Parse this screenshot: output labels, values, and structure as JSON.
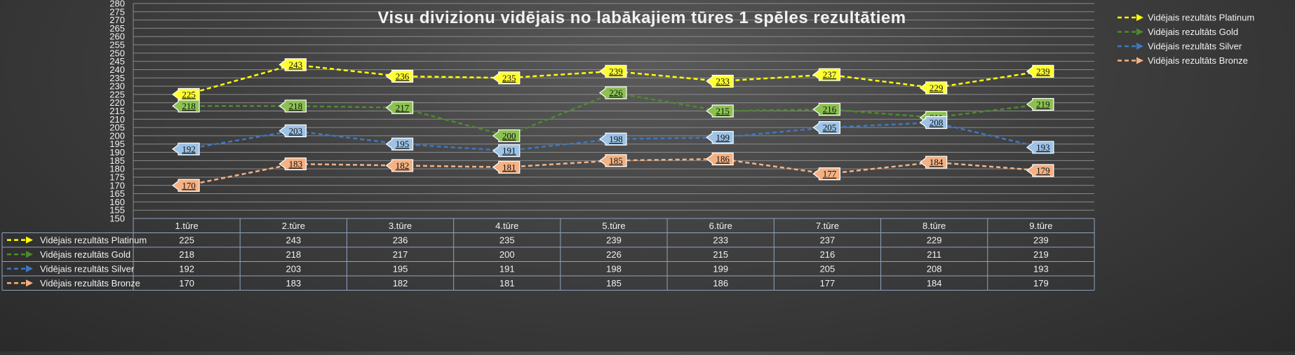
{
  "chart_data": {
    "type": "line",
    "title": "Visu divizionu vidējais no labākajiem tūres 1 spēles rezultātiem",
    "categories": [
      "1.tūre",
      "2.tūre",
      "3.tūre",
      "4.tūre",
      "5.tūre",
      "6.tūre",
      "7.tūre",
      "8.tūre",
      "9.tūre"
    ],
    "ylim": [
      150,
      280
    ],
    "ystep": 5,
    "grid": true,
    "legend_position": "top-right",
    "data_table": true,
    "series": [
      {
        "name": "Vidējais rezultāts Platinum",
        "color": "#ffff00",
        "label_bg": "#ffff33",
        "values": [
          225,
          243,
          236,
          235,
          239,
          233,
          237,
          229,
          239
        ]
      },
      {
        "name": "Vidējais rezultāts Gold",
        "color": "#4e8a2b",
        "label_bg": "#8cc152",
        "values": [
          218,
          218,
          217,
          200,
          226,
          215,
          216,
          211,
          219
        ]
      },
      {
        "name": "Vidējais rezultāts Silver",
        "color": "#3d78c2",
        "label_bg": "#9dc3e6",
        "values": [
          192,
          203,
          195,
          191,
          198,
          199,
          205,
          208,
          193
        ]
      },
      {
        "name": "Vidējais rezultāts Bronze",
        "color": "#f4b183",
        "label_bg": "#f4b183",
        "values": [
          170,
          183,
          182,
          181,
          185,
          186,
          177,
          184,
          179
        ]
      }
    ]
  }
}
